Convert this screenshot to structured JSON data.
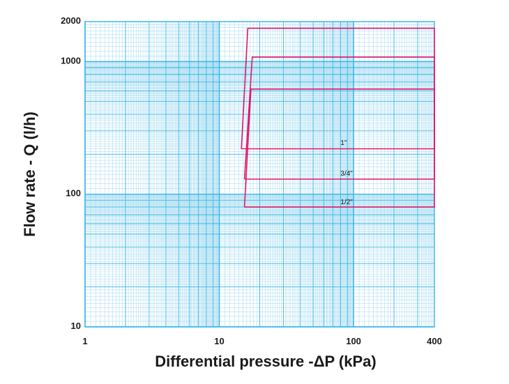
{
  "chart_data": {
    "type": "line",
    "xlabel": "Differential pressure -ΔP (kPa)",
    "ylabel": "Flow rate - Q (l/h)",
    "x_scale": "log",
    "y_scale": "log",
    "xlim": [
      1,
      400
    ],
    "ylim": [
      10,
      2000
    ],
    "grid": true,
    "x_ticks": [
      {
        "value": 1,
        "label": "1"
      },
      {
        "value": 10,
        "label": "10"
      },
      {
        "value": 100,
        "label": "100"
      },
      {
        "value": 400,
        "label": "400"
      }
    ],
    "y_ticks": [
      {
        "value": 10,
        "label": "10"
      },
      {
        "value": 100,
        "label": "100"
      },
      {
        "value": 1000,
        "label": "1000"
      },
      {
        "value": 2000,
        "label": "2000"
      }
    ],
    "series": [
      {
        "name": "1/2\"",
        "label_at": {
          "x": 80,
          "y": 84
        },
        "x": [
          15.4,
          15.4,
          400,
          400,
          17.2,
          15.4
        ],
        "y": [
          80,
          80,
          80,
          620,
          620,
          80
        ]
      },
      {
        "name": "3/4\"",
        "label_at": {
          "x": 80,
          "y": 138
        },
        "x": [
          15.4,
          400,
          400,
          17.6,
          15.4
        ],
        "y": [
          130,
          130,
          1080,
          1080,
          130
        ]
      },
      {
        "name": "1\"",
        "label_at": {
          "x": 80,
          "y": 235
        },
        "x": [
          14.6,
          400,
          400,
          16.3,
          14.6
        ],
        "y": [
          220,
          220,
          1780,
          1780,
          220
        ]
      }
    ],
    "colors": {
      "grid": "#33b5e5",
      "grid_minor": "#9fd8f0",
      "series": "#e0166a",
      "text": "#1a1a1a"
    }
  }
}
